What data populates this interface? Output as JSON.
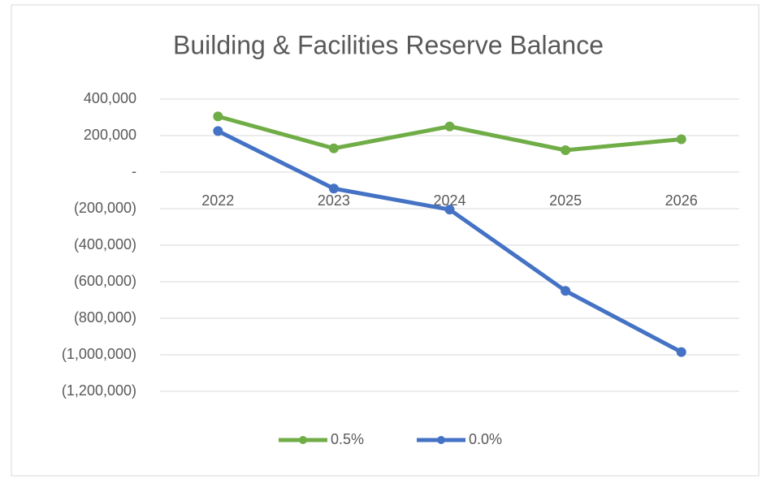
{
  "chart_data": {
    "type": "line",
    "title": "Building & Facilities Reserve Balance",
    "categories": [
      "2022",
      "2023",
      "2024",
      "2025",
      "2026"
    ],
    "series": [
      {
        "name": "0.5%",
        "color": "#70ad47",
        "values": [
          305000,
          130000,
          250000,
          120000,
          180000
        ]
      },
      {
        "name": "0.0%",
        "color": "#4472c4",
        "values": [
          225000,
          -90000,
          -205000,
          -650000,
          -985000
        ]
      }
    ],
    "ylim": [
      -1200000,
      400000
    ],
    "yticks": [
      {
        "value": 400000,
        "label": "400,000"
      },
      {
        "value": 200000,
        "label": "200,000"
      },
      {
        "value": 0,
        "label": "-"
      },
      {
        "value": -200000,
        "label": "(200,000)"
      },
      {
        "value": -400000,
        "label": "(400,000)"
      },
      {
        "value": -600000,
        "label": "(600,000)"
      },
      {
        "value": -800000,
        "label": "(800,000)"
      },
      {
        "value": -1000000,
        "label": "(1,000,000)"
      },
      {
        "value": -1200000,
        "label": "(1,200,000)"
      }
    ],
    "grid": true,
    "legend": "bottom"
  }
}
